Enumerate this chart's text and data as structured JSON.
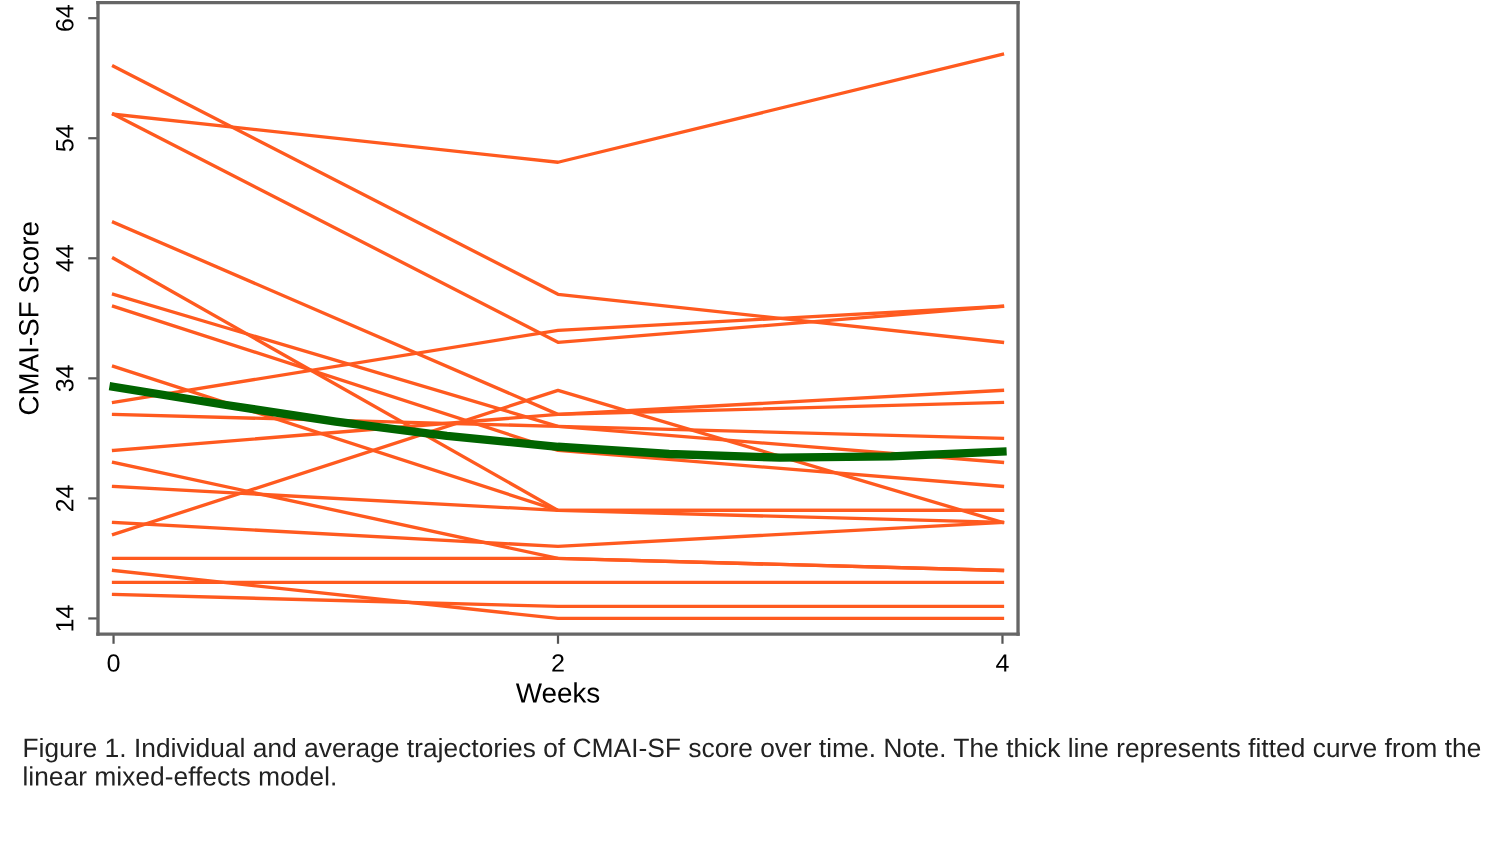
{
  "chart_data": {
    "type": "line",
    "xlabel": "Weeks",
    "ylabel": "CMAI-SF Score",
    "x": [
      0,
      2,
      4
    ],
    "xlim": [
      -0.07,
      4.07
    ],
    "ylim": [
      12.7,
      65.3
    ],
    "xticks": [
      0,
      2,
      4
    ],
    "yticks": [
      14,
      24,
      34,
      44,
      54,
      64
    ],
    "grid": false,
    "marker": "none",
    "line_style": "solid",
    "series": [
      {
        "color": "#ff5a1f",
        "values": [
          56,
          52,
          61
        ]
      },
      {
        "color": "#ff5a1f",
        "values": [
          60,
          41,
          37
        ]
      },
      {
        "color": "#ff5a1f",
        "values": [
          56,
          37,
          40
        ]
      },
      {
        "color": "#ff5a1f",
        "values": [
          32,
          38,
          40
        ]
      },
      {
        "color": "#ff5a1f",
        "values": [
          47,
          31,
          33
        ]
      },
      {
        "color": "#ff5a1f",
        "values": [
          28,
          31,
          32
        ]
      },
      {
        "color": "#ff5a1f",
        "values": [
          31,
          30,
          29
        ]
      },
      {
        "color": "#ff5a1f",
        "values": [
          41,
          30,
          27
        ]
      },
      {
        "color": "#ff5a1f",
        "values": [
          40,
          28,
          25
        ]
      },
      {
        "color": "#ff5a1f",
        "values": [
          44,
          23,
          23
        ]
      },
      {
        "color": "#ff5a1f",
        "values": [
          35,
          23,
          22
        ]
      },
      {
        "color": "#ff5a1f",
        "values": [
          25,
          23,
          23
        ]
      },
      {
        "color": "#ff5a1f",
        "values": [
          21,
          33,
          22
        ]
      },
      {
        "color": "#ff5a1f",
        "values": [
          22,
          20,
          22
        ]
      },
      {
        "color": "#ff5a1f",
        "values": [
          27,
          19,
          18
        ]
      },
      {
        "color": "#ff5a1f",
        "values": [
          19,
          19,
          18
        ]
      },
      {
        "color": "#ff5a1f",
        "values": [
          17,
          17,
          17
        ]
      },
      {
        "color": "#ff5a1f",
        "values": [
          18,
          14,
          14
        ]
      },
      {
        "color": "#ff5a1f",
        "values": [
          16,
          15,
          15
        ]
      },
      {
        "type": "line",
        "color": "#006400",
        "x": [
          0,
          0.5,
          1,
          1.5,
          2,
          2.5,
          3,
          3.5,
          4
        ],
        "values": [
          33.3,
          31.8,
          30.4,
          29.2,
          28.3,
          27.7,
          27.4,
          27.5,
          27.9
        ]
      }
    ],
    "annotations": [
      "Figure 1. Individual and average trajectories of CMAI-SF score over time. Note. The thick line represents fitted curve from the linear mixed-effects model."
    ]
  }
}
